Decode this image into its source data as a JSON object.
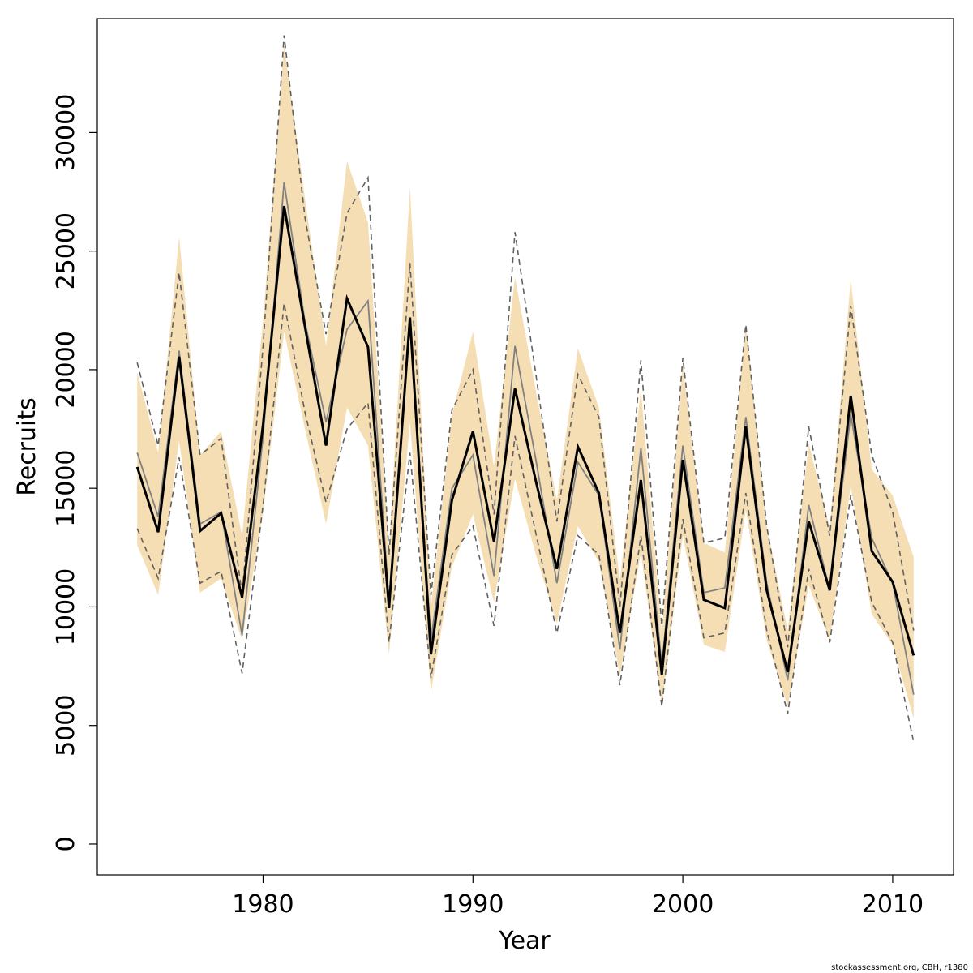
{
  "chart_data": {
    "type": "line",
    "xlabel": "Year",
    "ylabel": "Recruits",
    "xlim": [
      1972.1,
      2012.9
    ],
    "ylim": [
      -1300,
      34800
    ],
    "x_ticks": [
      1980,
      1990,
      2000,
      2010
    ],
    "y_ticks": [
      0,
      5000,
      10000,
      15000,
      20000,
      25000,
      30000
    ],
    "grid": false,
    "legend": "none",
    "footnote": "stockassessment.org, CBH, r1380",
    "colors": {
      "band": "#f5deb3",
      "main_line": "#000000",
      "alt_line": "#808080",
      "alt_bounds": "#606060"
    },
    "years": [
      1974,
      1975,
      1976,
      1977,
      1978,
      1979,
      1980,
      1981,
      1982,
      1983,
      1984,
      1985,
      1986,
      1987,
      1988,
      1989,
      1990,
      1991,
      1992,
      1993,
      1994,
      1995,
      1996,
      1997,
      1998,
      1999,
      2000,
      2001,
      2002,
      2003,
      2004,
      2005,
      2006,
      2007,
      2008,
      2009,
      2010,
      2011
    ],
    "series": [
      {
        "role": "estimate",
        "values": [
          15900,
          13150,
          20550,
          13200,
          13950,
          10400,
          17700,
          26900,
          21800,
          16800,
          23000,
          20950,
          9950,
          22200,
          8000,
          14500,
          17400,
          12750,
          19200,
          15300,
          11600,
          16750,
          14800,
          8900,
          15350,
          7150,
          16200,
          10300,
          9950,
          17600,
          10700,
          7250,
          13600,
          10700,
          18900,
          12350,
          11050,
          7950
        ]
      },
      {
        "role": "lower",
        "values": [
          12600,
          10500,
          17000,
          10600,
          11200,
          8600,
          14000,
          21600,
          17500,
          13500,
          18400,
          16800,
          8000,
          17800,
          6400,
          11700,
          13900,
          10200,
          15400,
          12200,
          9300,
          13400,
          11900,
          7100,
          12300,
          5800,
          13000,
          8400,
          8100,
          14100,
          8600,
          5800,
          10900,
          8600,
          15100,
          9700,
          8400,
          5300
        ]
      },
      {
        "role": "upper",
        "values": [
          19900,
          16500,
          25600,
          16400,
          17400,
          13000,
          22100,
          33700,
          27200,
          21000,
          28800,
          26200,
          12400,
          27700,
          10000,
          18100,
          21600,
          15900,
          23900,
          19100,
          14500,
          20900,
          18400,
          11100,
          19200,
          8900,
          20200,
          12700,
          12300,
          21900,
          13400,
          9000,
          16900,
          13300,
          23800,
          15800,
          14700,
          12100
        ]
      },
      {
        "role": "alt_estimate",
        "values": [
          16500,
          13800,
          20800,
          13500,
          14000,
          8800,
          17200,
          27900,
          22000,
          17800,
          21700,
          22900,
          10200,
          22000,
          8600,
          15000,
          16400,
          11300,
          21000,
          16200,
          11000,
          16100,
          14700,
          8200,
          16700,
          7500,
          16800,
          10600,
          10800,
          18000,
          11000,
          6900,
          14300,
          10700,
          18100,
          12900,
          11000,
          6300
        ]
      },
      {
        "role": "alt_lower",
        "values": [
          13300,
          11200,
          16300,
          11000,
          11500,
          7200,
          14300,
          22800,
          18200,
          14400,
          17500,
          18600,
          8500,
          16500,
          7000,
          12200,
          13400,
          9200,
          17200,
          13100,
          8900,
          13000,
          12200,
          6700,
          13000,
          5800,
          13700,
          8700,
          8900,
          14800,
          9000,
          5500,
          11600,
          8500,
          14700,
          10200,
          8500,
          4300
        ]
      },
      {
        "role": "alt_upper",
        "values": [
          20300,
          16800,
          24100,
          16400,
          17100,
          10500,
          21000,
          34100,
          26400,
          21500,
          26600,
          28100,
          12200,
          24500,
          10500,
          18300,
          20000,
          13900,
          25800,
          19800,
          13600,
          19800,
          18000,
          10000,
          20400,
          9200,
          20500,
          12700,
          12900,
          21900,
          13400,
          8300,
          17600,
          13000,
          22700,
          16400,
          14000,
          9000
        ]
      }
    ]
  }
}
